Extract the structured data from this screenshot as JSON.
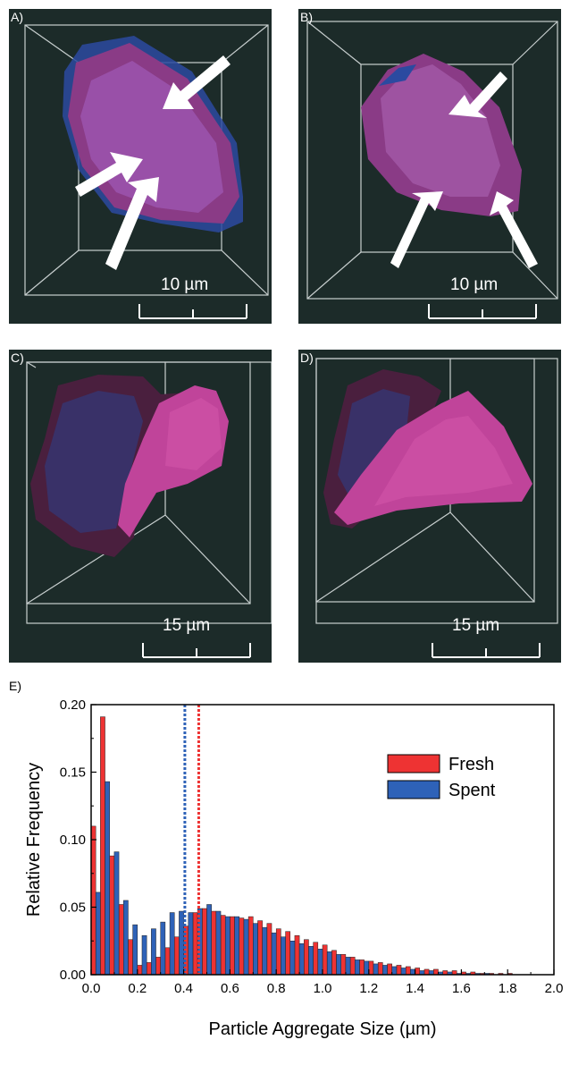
{
  "panels": [
    {
      "label": "A)",
      "scale": "10 µm"
    },
    {
      "label": "B)",
      "scale": "10 µm"
    },
    {
      "label": "C)",
      "scale": "15 µm"
    },
    {
      "label": "D)",
      "scale": "15 µm"
    }
  ],
  "colors": {
    "fresh": "#ee3333",
    "spent": "#2e62b8",
    "panel_bg": "#1c2b29"
  },
  "chart_data": {
    "type": "bar",
    "panel_label": "E)",
    "xlabel": "Particle Aggregate Size (µm)",
    "ylabel": "Relative Frequency",
    "xlim": [
      0,
      2.0
    ],
    "ylim": [
      0,
      0.2
    ],
    "xticks": [
      "0.0",
      "0.2",
      "0.4",
      "0.6",
      "0.8",
      "1.0",
      "1.2",
      "1.4",
      "1.6",
      "1.8",
      "2.0"
    ],
    "yticks": [
      "0.00",
      "0.05",
      "0.10",
      "0.15",
      "0.20"
    ],
    "bin_width": 0.04,
    "bin_starts": [
      0.0,
      0.04,
      0.08,
      0.12,
      0.16,
      0.2,
      0.24,
      0.28,
      0.32,
      0.36,
      0.4,
      0.44,
      0.48,
      0.52,
      0.56,
      0.6,
      0.64,
      0.68,
      0.72,
      0.76,
      0.8,
      0.84,
      0.88,
      0.92,
      0.96,
      1.0,
      1.04,
      1.08,
      1.12,
      1.16,
      1.2,
      1.24,
      1.28,
      1.32,
      1.36,
      1.4,
      1.44,
      1.48,
      1.52,
      1.56,
      1.6,
      1.64,
      1.68,
      1.72,
      1.76,
      1.8,
      1.84,
      1.88,
      1.92,
      1.96
    ],
    "legend_position": "top-right",
    "series": [
      {
        "name": "Fresh",
        "color": "#ee3333",
        "mean": 0.465,
        "values": [
          0.11,
          0.191,
          0.088,
          0.052,
          0.026,
          0.007,
          0.009,
          0.013,
          0.02,
          0.028,
          0.036,
          0.046,
          0.049,
          0.047,
          0.044,
          0.043,
          0.042,
          0.043,
          0.04,
          0.038,
          0.034,
          0.032,
          0.029,
          0.026,
          0.024,
          0.022,
          0.018,
          0.015,
          0.013,
          0.011,
          0.01,
          0.009,
          0.008,
          0.007,
          0.006,
          0.005,
          0.004,
          0.004,
          0.003,
          0.003,
          0.002,
          0.002,
          0.001,
          0.001,
          0.001,
          0.001,
          0.0,
          0.0,
          0.0,
          0.0
        ]
      },
      {
        "name": "Spent",
        "color": "#2e62b8",
        "mean": 0.405,
        "values": [
          0.061,
          0.143,
          0.091,
          0.055,
          0.037,
          0.029,
          0.034,
          0.039,
          0.046,
          0.047,
          0.046,
          0.049,
          0.052,
          0.047,
          0.043,
          0.043,
          0.041,
          0.038,
          0.035,
          0.031,
          0.028,
          0.025,
          0.023,
          0.021,
          0.019,
          0.017,
          0.015,
          0.013,
          0.011,
          0.01,
          0.008,
          0.007,
          0.006,
          0.005,
          0.004,
          0.003,
          0.003,
          0.002,
          0.002,
          0.001,
          0.001,
          0.001,
          0.001,
          0.0,
          0.0,
          0.0,
          0.0,
          0.0,
          0.0,
          0.0
        ]
      }
    ]
  }
}
